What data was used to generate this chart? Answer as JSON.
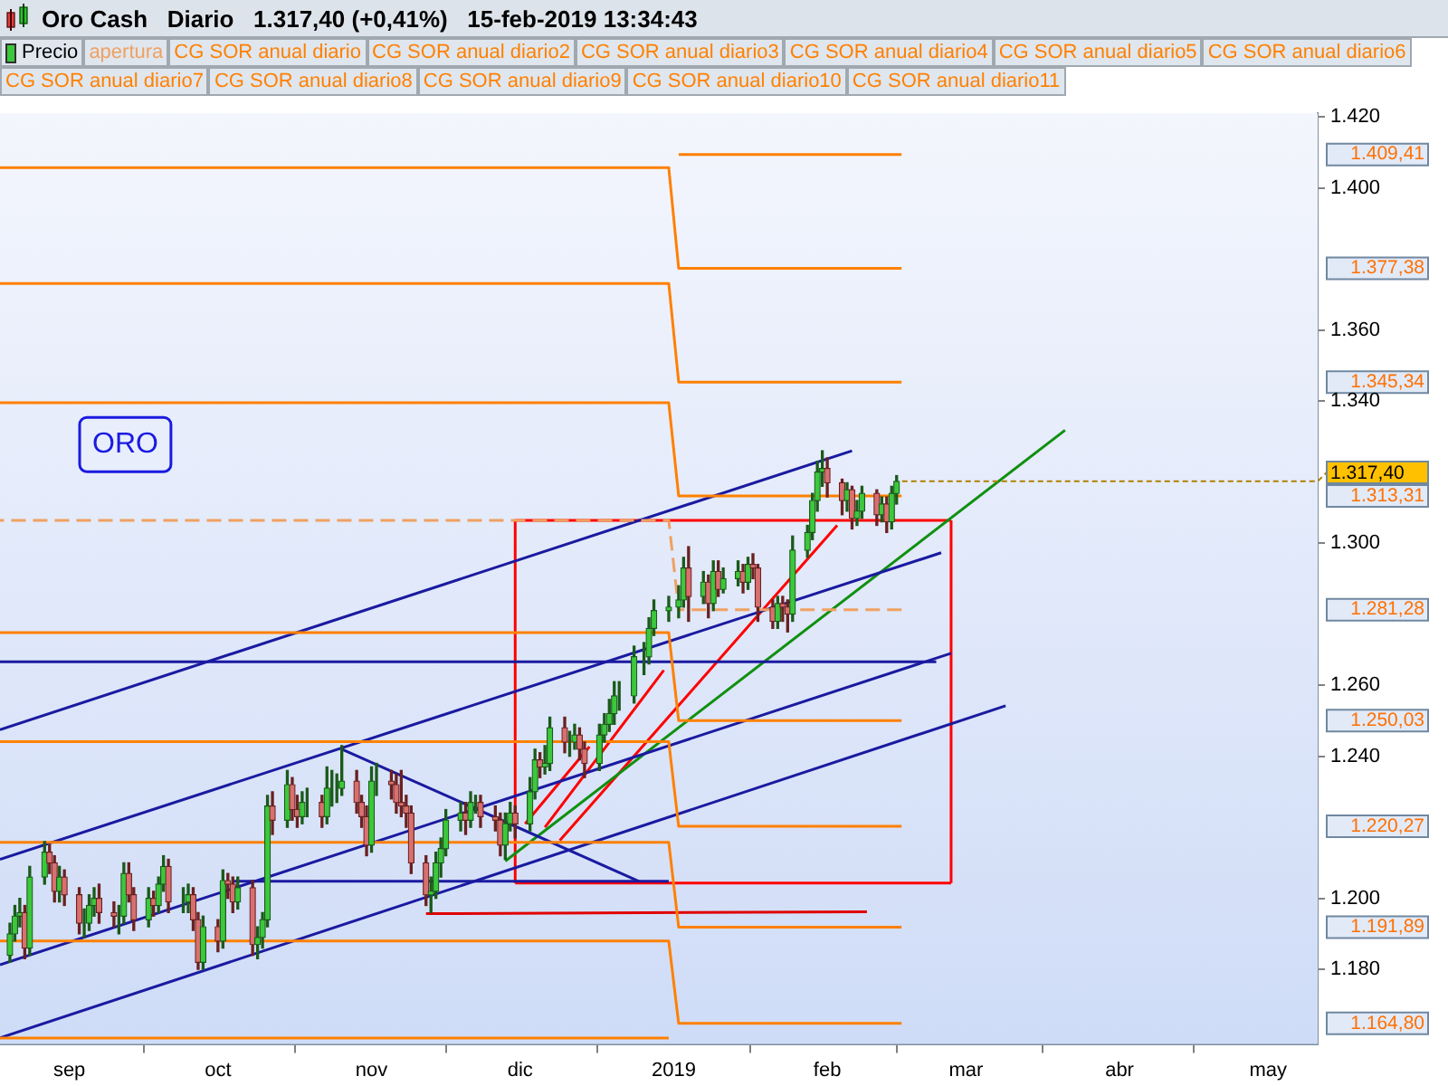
{
  "chart_data": {
    "type": "candlestick",
    "title": "Oro Cash   Diario   1.317,40 (+0,41%)   15-feb-2019 13:34:43",
    "legend": "top",
    "xlim": [
      "2018-08-18",
      "2019-05-11"
    ],
    "xticks": [
      {
        "value": "2018-09-01",
        "label": "sep"
      },
      {
        "value": "2018-10-01",
        "label": "oct"
      },
      {
        "value": "2018-11-01",
        "label": "nov"
      },
      {
        "value": "2018-12-01",
        "label": "dic"
      },
      {
        "value": "2019-01-01",
        "label": "2019"
      },
      {
        "value": "2019-02-01",
        "label": "feb"
      },
      {
        "value": "2019-03-01",
        "label": "mar"
      },
      {
        "value": "2019-04-01",
        "label": "abr"
      },
      {
        "value": "2019-05-01",
        "label": "may"
      }
    ],
    "ylim": [
      1159,
      1421
    ],
    "yticks": [
      {
        "value": 1180,
        "label": "1.180"
      },
      {
        "value": 1200,
        "label": "1.200"
      },
      {
        "value": 1240,
        "label": "1.240"
      },
      {
        "value": 1260,
        "label": "1.260"
      },
      {
        "value": 1300,
        "label": "1.300"
      },
      {
        "value": 1340,
        "label": "1.340"
      },
      {
        "value": 1360,
        "label": "1.360"
      },
      {
        "value": 1400,
        "label": "1.400"
      },
      {
        "value": 1420,
        "label": "1.420"
      }
    ],
    "y2lim": [
      1159,
      1421
    ],
    "y2ticks": [
      {
        "value": 1409.41,
        "label": "1.409,41"
      },
      {
        "value": 1377.38,
        "label": "1.377,38"
      },
      {
        "value": 1345.34,
        "label": "1.345,34"
      },
      {
        "value": 1313.31,
        "label": "1.313,31"
      },
      {
        "value": 1281.28,
        "label": "1.281,28"
      },
      {
        "value": 1250.03,
        "label": "1.250,03"
      },
      {
        "value": 1220.27,
        "label": "1.220,27"
      },
      {
        "value": 1191.89,
        "label": "1.191,89"
      },
      {
        "value": 1164.8,
        "label": "1.164,80"
      }
    ],
    "annotations": [
      "ORO",
      {
        "text": "1.317,40",
        "x": "2019-02-15",
        "y": 1317.4
      }
    ],
    "series": [
      {
        "name": "Precio",
        "x": [
          "2018-08-20",
          "2018-08-21",
          "2018-08-22",
          "2018-08-23",
          "2018-08-24",
          "2018-08-27",
          "2018-08-28",
          "2018-08-29",
          "2018-08-30",
          "2018-08-31",
          "2018-09-03",
          "2018-09-04",
          "2018-09-05",
          "2018-09-06",
          "2018-09-07",
          "2018-09-10",
          "2018-09-11",
          "2018-09-12",
          "2018-09-13",
          "2018-09-14",
          "2018-09-17",
          "2018-09-18",
          "2018-09-19",
          "2018-09-20",
          "2018-09-21",
          "2018-09-24",
          "2018-09-25",
          "2018-09-26",
          "2018-09-27",
          "2018-09-28",
          "2018-10-01",
          "2018-10-02",
          "2018-10-03",
          "2018-10-04",
          "2018-10-05",
          "2018-10-08",
          "2018-10-09",
          "2018-10-10",
          "2018-10-11",
          "2018-10-12",
          "2018-10-15",
          "2018-10-16",
          "2018-10-17",
          "2018-10-18",
          "2018-10-19",
          "2018-10-22",
          "2018-10-23",
          "2018-10-24",
          "2018-10-25",
          "2018-10-26",
          "2018-10-29",
          "2018-10-30",
          "2018-10-31",
          "2018-11-01",
          "2018-11-02",
          "2018-11-05",
          "2018-11-06",
          "2018-11-07",
          "2018-11-08",
          "2018-11-09",
          "2018-11-12",
          "2018-11-13",
          "2018-11-14",
          "2018-11-15",
          "2018-11-16",
          "2018-11-19",
          "2018-11-20",
          "2018-11-21",
          "2018-11-22",
          "2018-11-23",
          "2018-11-26",
          "2018-11-27",
          "2018-11-28",
          "2018-11-29",
          "2018-11-30",
          "2018-12-03",
          "2018-12-04",
          "2018-12-05",
          "2018-12-06",
          "2018-12-07",
          "2018-12-10",
          "2018-12-11",
          "2018-12-12",
          "2018-12-13",
          "2018-12-14",
          "2018-12-17",
          "2018-12-18",
          "2018-12-19",
          "2018-12-20",
          "2018-12-21",
          "2018-12-24",
          "2018-12-26",
          "2018-12-27",
          "2018-12-28",
          "2018-12-31",
          "2019-01-02",
          "2019-01-03",
          "2019-01-04",
          "2019-01-07",
          "2019-01-08",
          "2019-01-09",
          "2019-01-10",
          "2019-01-11",
          "2019-01-14",
          "2019-01-15",
          "2019-01-16",
          "2019-01-17",
          "2019-01-18",
          "2019-01-21",
          "2019-01-22",
          "2019-01-23",
          "2019-01-24",
          "2019-01-25",
          "2019-01-28",
          "2019-01-29",
          "2019-01-30",
          "2019-01-31",
          "2019-02-01",
          "2019-02-04",
          "2019-02-05",
          "2019-02-06",
          "2019-02-07",
          "2019-02-08",
          "2019-02-11",
          "2019-02-12",
          "2019-02-13",
          "2019-02-14",
          "2019-02-15"
        ],
        "ohlc": [
          [
            1184,
            1193,
            1182,
            1190
          ],
          [
            1190,
            1198,
            1188,
            1195
          ],
          [
            1195,
            1200,
            1192,
            1196
          ],
          [
            1196,
            1198,
            1183,
            1186
          ],
          [
            1186,
            1209,
            1184,
            1206
          ],
          [
            1206,
            1216,
            1204,
            1213
          ],
          [
            1213,
            1215,
            1207,
            1210
          ],
          [
            1210,
            1212,
            1199,
            1202
          ],
          [
            1202,
            1209,
            1199,
            1206
          ],
          [
            1206,
            1208,
            1198,
            1201
          ],
          [
            1201,
            1203,
            1190,
            1193
          ],
          [
            1193,
            1197,
            1189,
            1193
          ],
          [
            1193,
            1201,
            1191,
            1198
          ],
          [
            1198,
            1203,
            1195,
            1200
          ],
          [
            1200,
            1204,
            1193,
            1196
          ],
          [
            1196,
            1199,
            1192,
            1195
          ],
          [
            1195,
            1198,
            1190,
            1195
          ],
          [
            1195,
            1210,
            1193,
            1207
          ],
          [
            1207,
            1210,
            1199,
            1201
          ],
          [
            1201,
            1203,
            1191,
            1194
          ],
          [
            1194,
            1203,
            1192,
            1200
          ],
          [
            1200,
            1202,
            1195,
            1198
          ],
          [
            1198,
            1206,
            1196,
            1204
          ],
          [
            1204,
            1212,
            1202,
            1209
          ],
          [
            1209,
            1211,
            1196,
            1199
          ],
          [
            1199,
            1203,
            1196,
            1199
          ],
          [
            1199,
            1204,
            1196,
            1201
          ],
          [
            1201,
            1203,
            1191,
            1194
          ],
          [
            1194,
            1196,
            1180,
            1182
          ],
          [
            1182,
            1195,
            1180,
            1192
          ],
          [
            1192,
            1194,
            1185,
            1188
          ],
          [
            1188,
            1208,
            1186,
            1205
          ],
          [
            1205,
            1207,
            1200,
            1204
          ],
          [
            1204,
            1206,
            1196,
            1199
          ],
          [
            1199,
            1206,
            1197,
            1203
          ],
          [
            1203,
            1205,
            1184,
            1187
          ],
          [
            1187,
            1192,
            1183,
            1189
          ],
          [
            1189,
            1196,
            1186,
            1194
          ],
          [
            1194,
            1229,
            1192,
            1226
          ],
          [
            1226,
            1230,
            1218,
            1222
          ],
          [
            1222,
            1236,
            1220,
            1232
          ],
          [
            1232,
            1234,
            1222,
            1225
          ],
          [
            1225,
            1229,
            1220,
            1223
          ],
          [
            1223,
            1230,
            1221,
            1227
          ],
          [
            1227,
            1231,
            1223,
            1227
          ],
          [
            1227,
            1229,
            1220,
            1223
          ],
          [
            1223,
            1237,
            1221,
            1231
          ],
          [
            1231,
            1236,
            1226,
            1231
          ],
          [
            1231,
            1235,
            1227,
            1231
          ],
          [
            1231,
            1243,
            1229,
            1233
          ],
          [
            1233,
            1236,
            1224,
            1227
          ],
          [
            1227,
            1229,
            1220,
            1223
          ],
          [
            1223,
            1226,
            1212,
            1215
          ],
          [
            1215,
            1237,
            1213,
            1233
          ],
          [
            1233,
            1238,
            1229,
            1233
          ],
          [
            1233,
            1236,
            1228,
            1232
          ],
          [
            1232,
            1235,
            1224,
            1227
          ],
          [
            1227,
            1236,
            1223,
            1226
          ],
          [
            1226,
            1229,
            1220,
            1224
          ],
          [
            1224,
            1226,
            1207,
            1210
          ],
          [
            1210,
            1212,
            1198,
            1201
          ],
          [
            1201,
            1206,
            1196,
            1202
          ],
          [
            1202,
            1213,
            1200,
            1210
          ],
          [
            1210,
            1217,
            1206,
            1214
          ],
          [
            1214,
            1225,
            1212,
            1222
          ],
          [
            1222,
            1227,
            1219,
            1224
          ],
          [
            1224,
            1227,
            1218,
            1222
          ],
          [
            1222,
            1230,
            1220,
            1227
          ],
          [
            1227,
            1229,
            1224,
            1227
          ],
          [
            1227,
            1229,
            1220,
            1223
          ],
          [
            1223,
            1226,
            1219,
            1222
          ],
          [
            1222,
            1224,
            1212,
            1215
          ],
          [
            1215,
            1224,
            1211,
            1221
          ],
          [
            1221,
            1227,
            1219,
            1224
          ],
          [
            1224,
            1226,
            1217,
            1221
          ],
          [
            1221,
            1234,
            1219,
            1230
          ],
          [
            1230,
            1242,
            1228,
            1239
          ],
          [
            1239,
            1241,
            1234,
            1237
          ],
          [
            1237,
            1243,
            1235,
            1238
          ],
          [
            1238,
            1251,
            1236,
            1248
          ],
          [
            1248,
            1251,
            1241,
            1244
          ],
          [
            1244,
            1247,
            1240,
            1244
          ],
          [
            1244,
            1249,
            1242,
            1246
          ],
          [
            1246,
            1248,
            1239,
            1242
          ],
          [
            1242,
            1244,
            1234,
            1238
          ],
          [
            1238,
            1249,
            1236,
            1246
          ],
          [
            1246,
            1252,
            1244,
            1249
          ],
          [
            1249,
            1256,
            1247,
            1252
          ],
          [
            1252,
            1261,
            1249,
            1257
          ],
          [
            1257,
            1261,
            1253,
            1257
          ],
          [
            1257,
            1271,
            1255,
            1268
          ],
          [
            1268,
            1272,
            1263,
            1268
          ],
          [
            1268,
            1279,
            1266,
            1276
          ],
          [
            1276,
            1284,
            1274,
            1281
          ],
          [
            1281,
            1285,
            1278,
            1282
          ],
          [
            1282,
            1288,
            1279,
            1284
          ],
          [
            1284,
            1296,
            1282,
            1293
          ],
          [
            1293,
            1299,
            1278,
            1285
          ],
          [
            1285,
            1292,
            1283,
            1289
          ],
          [
            1289,
            1291,
            1279,
            1283
          ],
          [
            1283,
            1295,
            1281,
            1292
          ],
          [
            1292,
            1295,
            1285,
            1287
          ],
          [
            1287,
            1293,
            1286,
            1290
          ],
          [
            1290,
            1295,
            1288,
            1292
          ],
          [
            1292,
            1294,
            1286,
            1289
          ],
          [
            1289,
            1296,
            1287,
            1294
          ],
          [
            1294,
            1297,
            1290,
            1293
          ],
          [
            1293,
            1294,
            1278,
            1282
          ],
          [
            1282,
            1284,
            1276,
            1278
          ],
          [
            1278,
            1285,
            1276,
            1283
          ],
          [
            1283,
            1285,
            1278,
            1282
          ],
          [
            1282,
            1284,
            1275,
            1280
          ],
          [
            1280,
            1302,
            1278,
            1298
          ],
          [
            1298,
            1305,
            1296,
            1303
          ],
          [
            1303,
            1314,
            1301,
            1312
          ],
          [
            1312,
            1323,
            1309,
            1320
          ],
          [
            1320,
            1326,
            1316,
            1321
          ],
          [
            1321,
            1324,
            1313,
            1317
          ],
          [
            1317,
            1318,
            1308,
            1312
          ],
          [
            1312,
            1317,
            1309,
            1315
          ],
          [
            1315,
            1316,
            1304,
            1307
          ],
          [
            1307,
            1312,
            1305,
            1309
          ],
          [
            1309,
            1316,
            1307,
            1314
          ],
          [
            1314,
            1315,
            1305,
            1308
          ],
          [
            1308,
            1313,
            1306,
            1311
          ],
          [
            1311,
            1313,
            1303,
            1306
          ],
          [
            1306,
            1316,
            1304,
            1314
          ],
          [
            1314,
            1319,
            1311,
            1317.4
          ]
        ]
      },
      {
        "name": "apertura",
        "type": "line",
        "line_style": "dashed",
        "color": "#f0a060",
        "x": [
          "2018-08-18",
          "2018-12-31",
          "2019-01-02",
          "2019-02-16"
        ],
        "values": [
          1306.4,
          1306.4,
          1281.28,
          1281.28
        ]
      },
      {
        "name": "CG SOR anual diario",
        "type": "line",
        "color": "#ff8000",
        "x": [
          "2019-01-02",
          "2019-02-16"
        ],
        "values": [
          1409.41,
          1409.41
        ]
      },
      {
        "name": "CG SOR anual diario2",
        "type": "line",
        "color": "#ff8000",
        "x": [
          "2018-08-18",
          "2018-12-31",
          "2019-01-02",
          "2019-02-16"
        ],
        "values": [
          1405.7,
          1405.7,
          1377.38,
          1377.38
        ]
      },
      {
        "name": "CG SOR anual diario3",
        "type": "line",
        "color": "#ff8000",
        "x": [
          "2018-08-18",
          "2018-12-31",
          "2019-01-02",
          "2019-02-16"
        ],
        "values": [
          1373.1,
          1373.1,
          1345.34,
          1345.34
        ]
      },
      {
        "name": "CG SOR anual diario4",
        "type": "line",
        "color": "#ff8000",
        "x": [
          "2018-08-18",
          "2018-12-31",
          "2019-01-02",
          "2019-02-16"
        ],
        "values": [
          1339.5,
          1339.5,
          1313.31,
          1313.31
        ]
      },
      {
        "name": "CG SOR anual diario5",
        "type": "line",
        "color": "#ff8000",
        "x": [
          "2018-08-18",
          "2018-12-31",
          "2019-01-02",
          "2019-02-16"
        ],
        "values": [
          1274.8,
          1274.8,
          1250.03,
          1250.03
        ]
      },
      {
        "name": "CG SOR anual diario6",
        "type": "line",
        "color": "#ff8000",
        "x": [
          "2018-08-18",
          "2018-12-31",
          "2019-01-02",
          "2019-02-16"
        ],
        "values": [
          1244.1,
          1244.1,
          1220.27,
          1220.27
        ]
      },
      {
        "name": "CG SOR anual diario7",
        "type": "line",
        "color": "#ff8000",
        "x": [
          "2018-08-18",
          "2018-12-31",
          "2019-01-02",
          "2019-02-16"
        ],
        "values": [
          1215.8,
          1215.8,
          1191.89,
          1191.89
        ]
      },
      {
        "name": "CG SOR anual diario8",
        "type": "line",
        "color": "#ff8000",
        "x": [
          "2018-08-18",
          "2018-12-31",
          "2019-01-02",
          "2019-02-16"
        ],
        "values": [
          1188,
          1188,
          1164.8,
          1164.8
        ]
      },
      {
        "name": "CG SOR anual diario9",
        "type": "line",
        "color": "#ff8000",
        "x": [
          "2018-08-18",
          "2018-12-31"
        ],
        "values": [
          1160.7,
          1160.7
        ]
      },
      {
        "name": "CG SOR anual diario10",
        "type": "line",
        "color": "#ff8000"
      },
      {
        "name": "CG SOR anual diario11",
        "type": "line",
        "color": "#ff8000"
      },
      {
        "type": "line",
        "color": "#1a1aa0",
        "x": [
          "2018-08-18",
          "2019-02-06"
        ],
        "values": [
          1247.5,
          1326
        ]
      },
      {
        "type": "line",
        "color": "#1a1aa0",
        "x": [
          "2018-08-18",
          "2019-02-24"
        ],
        "values": [
          1211,
          1297.3
        ]
      },
      {
        "type": "line",
        "color": "#1a1aa0",
        "x": [
          "2018-08-18",
          "2019-02-26"
        ],
        "values": [
          1181.3,
          1269
        ]
      },
      {
        "type": "line",
        "color": "#1a1aa0",
        "x": [
          "2018-08-18",
          "2019-03-09"
        ],
        "values": [
          1160.7,
          1254.2
        ]
      },
      {
        "type": "line",
        "color": "#1a1aa0",
        "x": [
          "2018-08-18",
          "2019-02-23"
        ],
        "values": [
          1266.6,
          1266.6
        ]
      },
      {
        "type": "line",
        "color": "#1a1aa0",
        "x": [
          "2018-10-04",
          "2018-12-31"
        ],
        "values": [
          1204.8,
          1204.8
        ]
      },
      {
        "type": "line",
        "color": "#1a1aa0",
        "x": [
          "2018-10-26",
          "2018-12-25"
        ],
        "values": [
          1242,
          1204.8
        ]
      },
      {
        "type": "line",
        "color": "#e00000",
        "x": [
          "2018-11-12",
          "2019-02-09"
        ],
        "values": [
          1195.7,
          1196.2
        ]
      },
      {
        "type": "line",
        "color": "#109010",
        "x": [
          "2018-11-28",
          "2019-03-21"
        ],
        "values": [
          1210.5,
          1331.8
        ]
      },
      {
        "type": "line",
        "color": "#ff0000",
        "x": [
          "2018-12-02",
          "2018-12-15"
        ],
        "values": [
          1221,
          1242.7
        ]
      },
      {
        "type": "line",
        "color": "#ff0000",
        "x": [
          "2018-12-06",
          "2018-12-30"
        ],
        "values": [
          1220,
          1264.2
        ]
      },
      {
        "type": "line",
        "color": "#ff0000",
        "x": [
          "2018-12-09",
          "2019-02-03"
        ],
        "values": [
          1216.3,
          1305
        ]
      },
      {
        "type": "line",
        "color": "#ff0000",
        "x": [
          "2018-11-30",
          "2019-02-26"
        ],
        "values": [
          1306.4,
          1306.4
        ]
      },
      {
        "type": "line",
        "color": "#ff0000",
        "x": [
          "2018-11-30",
          "2019-02-26"
        ],
        "values": [
          1204.3,
          1204.3
        ]
      },
      {
        "type": "line",
        "color": "#ff0000",
        "x": [
          "2018-11-30",
          "2018-11-30"
        ],
        "values": [
          1204.3,
          1306.4
        ]
      },
      {
        "type": "line",
        "color": "#ff0000",
        "x": [
          "2019-02-26",
          "2019-02-26"
        ],
        "values": [
          1204.3,
          1306.4
        ]
      }
    ]
  }
}
